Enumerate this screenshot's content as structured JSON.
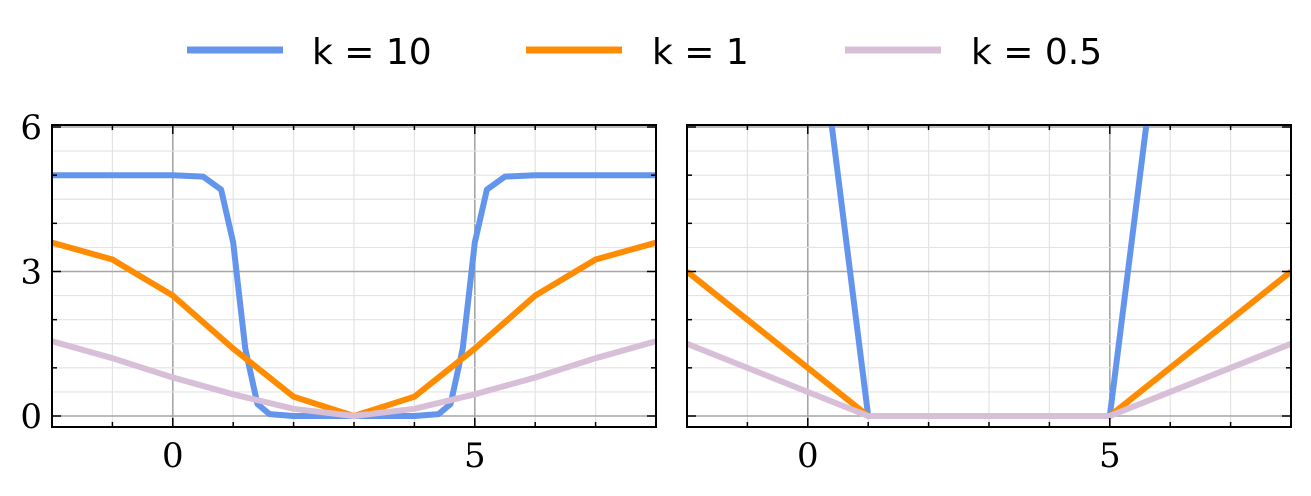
{
  "legend": [
    {
      "label": "k = 10",
      "color": "#6495ED"
    },
    {
      "label": "k = 1",
      "color": "#FF8C00"
    },
    {
      "label": "k = 0.5",
      "color": "#D8BFD8"
    }
  ],
  "chart_data": [
    {
      "type": "line",
      "x_ticks": [
        "0",
        "5"
      ],
      "y_ticks": [
        "0",
        "3",
        "6"
      ],
      "xlim": [
        -2,
        8
      ],
      "ylim": [
        -0.2,
        6
      ],
      "grid": true,
      "legend_position": "top-center",
      "series": [
        {
          "name": "k = 10",
          "color": "#6495ED",
          "x": [
            -2,
            0,
            0.5,
            0.8,
            1.0,
            1.1,
            1.2,
            1.4,
            1.6,
            2.0,
            3.0,
            4.0,
            4.4,
            4.6,
            4.8,
            4.9,
            5.0,
            5.2,
            5.5,
            6,
            8
          ],
          "y": [
            5,
            5,
            4.97,
            4.7,
            3.6,
            2.5,
            1.4,
            0.25,
            0.04,
            0,
            0,
            0,
            0.04,
            0.25,
            1.4,
            2.5,
            3.6,
            4.7,
            4.97,
            5,
            5
          ]
        },
        {
          "name": "k = 1",
          "color": "#FF8C00",
          "x": [
            -2,
            -1,
            0,
            1,
            2,
            3,
            4,
            5,
            6,
            7,
            8
          ],
          "y": [
            3.6,
            3.25,
            2.5,
            1.4,
            0.4,
            0,
            0.4,
            1.4,
            2.5,
            3.25,
            3.6
          ]
        },
        {
          "name": "k = 0.5",
          "color": "#D8BFD8",
          "x": [
            -2,
            -1,
            0,
            1,
            2,
            3,
            4,
            5,
            6,
            7,
            8
          ],
          "y": [
            1.55,
            1.2,
            0.8,
            0.45,
            0.15,
            0,
            0.15,
            0.45,
            0.8,
            1.2,
            1.55
          ]
        }
      ]
    },
    {
      "type": "line",
      "x_ticks": [
        "0",
        "5"
      ],
      "y_ticks": [],
      "xlim": [
        -2,
        8
      ],
      "ylim": [
        -0.2,
        6
      ],
      "grid": true,
      "series": [
        {
          "name": "k = 10",
          "color": "#6495ED",
          "x": [
            0.35,
            1,
            5,
            5.65
          ],
          "y": [
            6.5,
            0,
            0,
            6.5
          ]
        },
        {
          "name": "k = 1",
          "color": "#FF8C00",
          "x": [
            -2,
            1,
            5,
            8
          ],
          "y": [
            3,
            0,
            0,
            3
          ]
        },
        {
          "name": "k = 0.5",
          "color": "#D8BFD8",
          "x": [
            -2,
            1,
            5,
            8
          ],
          "y": [
            1.5,
            0,
            0,
            1.5
          ]
        }
      ]
    }
  ]
}
